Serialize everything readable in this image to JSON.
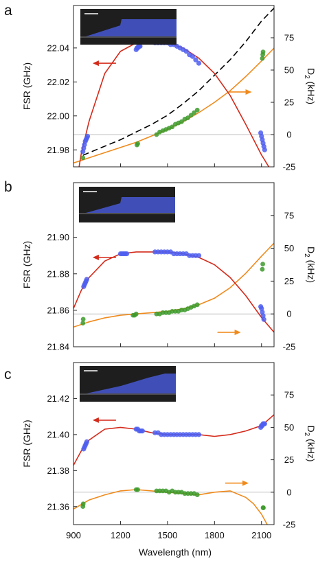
{
  "colors": {
    "fsr": "#d42a1a",
    "fsr_points": "#4d5ef0",
    "d2": "#f08a1c",
    "d2_points": "#3c9a2a",
    "integrated": "#000000",
    "zero_line": "#c0c0c0",
    "inset_bg": "#1e1e1e",
    "inset_waveguide": "#4454c8"
  },
  "icons": {
    "left_arrow": "red-left-arrow-icon",
    "right_arrow": "orange-right-arrow-icon"
  },
  "chart_data": [
    {
      "type": "scatter",
      "panel_label": "a",
      "xlabel": "",
      "ylabel": "FSR (GHz)",
      "ylabel_right_main": "D",
      "ylabel_right_sub": "2",
      "ylabel_right_unit": " (kHz)",
      "xlim": [
        900,
        2180
      ],
      "ylim": [
        21.97,
        22.065
      ],
      "y2lim": [
        -25,
        100
      ],
      "yticks": [
        "21.98",
        "22.00",
        "22.02",
        "22.04"
      ],
      "yticks_values": [
        21.98,
        22.0,
        22.02,
        22.04
      ],
      "y2ticks": [
        "-25",
        "0",
        "25",
        "50",
        "75"
      ],
      "y2ticks_values": [
        -25,
        0,
        25,
        50,
        75
      ],
      "show_xtick_labels": false,
      "grid": false,
      "fsr_fit": {
        "x": [
          900,
          950,
          1000,
          1100,
          1200,
          1300,
          1400,
          1500,
          1600,
          1700,
          1800,
          1900,
          2000,
          2100,
          2180
        ],
        "y": [
          21.95,
          21.978,
          21.997,
          22.025,
          22.038,
          22.043,
          22.044,
          22.043,
          22.04,
          22.034,
          22.025,
          22.012,
          21.995,
          21.977,
          21.965
        ]
      },
      "fsr_points": [
        {
          "x": [
            960,
            965,
            970,
            975,
            980,
            985,
            990,
            1300,
            1305,
            1310,
            1315,
            1320,
            1325
          ],
          "y": [
            21.979,
            21.981,
            21.983,
            21.985,
            21.986,
            21.987,
            21.988,
            22.039,
            22.04,
            22.04,
            22.041,
            22.041,
            22.041
          ]
        },
        {
          "x": [
            1420,
            1440,
            1460,
            1480,
            1500,
            1520,
            1540,
            1560,
            1580,
            1600,
            1620,
            1640,
            1660,
            1680,
            1700
          ],
          "y": [
            22.043,
            22.043,
            22.043,
            22.043,
            22.043,
            22.042,
            22.042,
            22.041,
            22.04,
            22.039,
            22.038,
            22.036,
            22.035,
            22.033,
            22.031
          ]
        },
        {
          "x": [
            2095,
            2100,
            2105,
            2110,
            2115,
            2120
          ],
          "y": [
            21.99,
            21.988,
            21.986,
            21.984,
            21.982,
            21.98
          ]
        }
      ],
      "d2_fit": {
        "x": [
          900,
          1000,
          1100,
          1200,
          1300,
          1400,
          1500,
          1600,
          1700,
          1800,
          1900,
          2000,
          2100,
          2180
        ],
        "y": [
          -22,
          -18,
          -14,
          -10,
          -6,
          -1,
          4,
          10,
          17,
          25,
          34,
          45,
          57,
          67
        ]
      },
      "d2_points": {
        "x": [
          960,
          1305,
          1310,
          1430,
          1450,
          1470,
          1490,
          1510,
          1530,
          1550,
          1570,
          1590,
          1610,
          1630,
          1650,
          1670,
          1690,
          2105,
          2108,
          2110
        ],
        "y": [
          -18,
          -8,
          -7,
          0,
          2,
          3,
          4,
          5,
          6,
          8,
          9,
          10,
          12,
          13,
          15,
          17,
          19,
          59,
          62,
          64
        ]
      },
      "integrated_dispersion": {
        "x": [
          960,
          1100,
          1200,
          1300,
          1400,
          1500,
          1600,
          1700,
          1800,
          1900,
          2000,
          2100,
          2180
        ],
        "y": [
          -16,
          -9,
          -4,
          2,
          8,
          15,
          24,
          34,
          46,
          58,
          72,
          88,
          98
        ]
      },
      "inset": "waveguide-cross-section-a",
      "arrow_left": {
        "x": 1110,
        "y": 22.031
      },
      "arrow_right": {
        "x": 1950,
        "y": 33
      }
    },
    {
      "type": "scatter",
      "panel_label": "b",
      "xlabel": "",
      "ylabel": "FSR (GHz)",
      "ylabel_right_main": "D",
      "ylabel_right_sub": "2",
      "ylabel_right_unit": " (kHz)",
      "xlim": [
        900,
        2180
      ],
      "ylim": [
        21.84,
        21.93
      ],
      "y2lim": [
        -25,
        100
      ],
      "yticks": [
        "21.84",
        "21.86",
        "21.88",
        "21.90"
      ],
      "yticks_values": [
        21.84,
        21.86,
        21.88,
        21.9
      ],
      "y2ticks": [
        "-25",
        "0",
        "25",
        "50",
        "75"
      ],
      "y2ticks_values": [
        -25,
        0,
        25,
        50,
        75
      ],
      "show_xtick_labels": false,
      "grid": false,
      "fsr_fit": {
        "x": [
          900,
          950,
          1000,
          1100,
          1200,
          1300,
          1400,
          1500,
          1600,
          1700,
          1800,
          1900,
          2000,
          2100,
          2180
        ],
        "y": [
          21.861,
          21.871,
          21.878,
          21.887,
          21.891,
          21.892,
          21.892,
          21.892,
          21.891,
          21.889,
          21.885,
          21.878,
          21.868,
          21.856,
          21.848
        ]
      },
      "fsr_points": [
        {
          "x": [
            965,
            970,
            975,
            980,
            985,
            1200,
            1210,
            1220,
            1230,
            1240
          ],
          "y": [
            21.873,
            21.874,
            21.875,
            21.876,
            21.877,
            21.891,
            21.891,
            21.891,
            21.891,
            21.891
          ]
        },
        {
          "x": [
            1420,
            1440,
            1460,
            1480,
            1500,
            1520,
            1540,
            1560,
            1580,
            1600,
            1620,
            1640,
            1660,
            1680,
            1700
          ],
          "y": [
            21.892,
            21.892,
            21.892,
            21.892,
            21.892,
            21.892,
            21.891,
            21.891,
            21.891,
            21.891,
            21.891,
            21.89,
            21.89,
            21.89,
            21.89
          ]
        },
        {
          "x": [
            2095,
            2100,
            2105,
            2110,
            2115
          ],
          "y": [
            21.862,
            21.861,
            21.859,
            21.857,
            21.855
          ]
        }
      ],
      "d2_fit": {
        "x": [
          900,
          1000,
          1100,
          1200,
          1300,
          1400,
          1500,
          1600,
          1700,
          1800,
          1900,
          2000,
          2100,
          2180
        ],
        "y": [
          -10,
          -6,
          -3,
          -1,
          0,
          1,
          2,
          4,
          7,
          12,
          20,
          31,
          44,
          54
        ]
      },
      "d2_points": {
        "x": [
          960,
          962,
          1280,
          1290,
          1300,
          1430,
          1450,
          1470,
          1490,
          1510,
          1530,
          1550,
          1570,
          1590,
          1610,
          1630,
          1650,
          1670,
          1690,
          2105,
          2108
        ],
        "y": [
          -7,
          -4,
          -1,
          -1,
          0,
          0,
          0,
          1,
          1,
          1,
          2,
          2,
          2,
          3,
          3,
          4,
          5,
          6,
          7,
          34,
          38
        ]
      },
      "inset": "waveguide-cross-section-b",
      "arrow_left": {
        "x": 1110,
        "y": 21.889
      },
      "arrow_right": {
        "x": 1880,
        "y": -14
      }
    },
    {
      "type": "scatter",
      "panel_label": "c",
      "xlabel": "Wavelength (nm)",
      "ylabel": "FSR (GHz)",
      "ylabel_right_main": "D",
      "ylabel_right_sub": "2",
      "ylabel_right_unit": " (kHz)",
      "xlim": [
        900,
        2180
      ],
      "xticks": [
        "900",
        "1200",
        "1500",
        "1800",
        "2100"
      ],
      "xticks_values": [
        900,
        1200,
        1500,
        1800,
        2100
      ],
      "ylim": [
        21.35,
        21.44
      ],
      "y2lim": [
        -25,
        100
      ],
      "yticks": [
        "21.36",
        "21.38",
        "21.40",
        "21.42"
      ],
      "yticks_values": [
        21.36,
        21.38,
        21.4,
        21.42
      ],
      "y2ticks": [
        "-25",
        "0",
        "25",
        "50",
        "75"
      ],
      "y2ticks_values": [
        -25,
        0,
        25,
        50,
        75
      ],
      "show_xtick_labels": true,
      "grid": false,
      "fsr_fit": {
        "x": [
          900,
          950,
          1000,
          1100,
          1200,
          1300,
          1400,
          1500,
          1600,
          1700,
          1800,
          1900,
          2000,
          2100,
          2180
        ],
        "y": [
          21.383,
          21.391,
          21.397,
          21.403,
          21.404,
          21.403,
          21.401,
          21.4,
          21.4,
          21.4,
          21.399,
          21.4,
          21.402,
          21.405,
          21.411
        ]
      },
      "fsr_points": [
        {
          "x": [
            965,
            970,
            975,
            980,
            985,
            1300,
            1310,
            1320,
            1330,
            1340
          ],
          "y": [
            21.392,
            21.393,
            21.394,
            21.395,
            21.396,
            21.403,
            21.403,
            21.402,
            21.402,
            21.402
          ]
        },
        {
          "x": [
            1420,
            1440,
            1460,
            1480,
            1500,
            1520,
            1540,
            1560,
            1580,
            1600,
            1620,
            1640,
            1660,
            1680,
            1700
          ],
          "y": [
            21.401,
            21.401,
            21.4,
            21.4,
            21.4,
            21.4,
            21.4,
            21.4,
            21.4,
            21.4,
            21.4,
            21.4,
            21.4,
            21.4,
            21.4
          ]
        },
        {
          "x": [
            2095,
            2100,
            2105,
            2110,
            2115,
            2120
          ],
          "y": [
            21.404,
            21.405,
            21.405,
            21.406,
            21.406,
            21.406
          ]
        }
      ],
      "d2_fit": {
        "x": [
          900,
          1000,
          1100,
          1200,
          1300,
          1400,
          1500,
          1600,
          1700,
          1800,
          1900,
          2000,
          2050,
          2100,
          2150,
          2180
        ],
        "y": [
          -13,
          -6,
          -2,
          1,
          2,
          1,
          0,
          -1,
          -2,
          0,
          1,
          -4,
          -9,
          -17,
          -28,
          -35
        ]
      },
      "d2_points": {
        "x": [
          960,
          962,
          1300,
          1310,
          1430,
          1450,
          1470,
          1490,
          1510,
          1530,
          1550,
          1570,
          1590,
          1610,
          1630,
          1650,
          1670,
          1690,
          2110,
          2112
        ],
        "y": [
          -11,
          -9,
          2,
          2,
          1,
          1,
          1,
          1,
          0,
          1,
          0,
          0,
          0,
          -1,
          -1,
          -1,
          -1,
          -2,
          -12,
          -12
        ]
      },
      "inset": "waveguide-cross-section-c",
      "arrow_left": {
        "x": 1110,
        "y": 21.408
      },
      "arrow_right": {
        "x": 1930,
        "y": 7
      }
    }
  ]
}
